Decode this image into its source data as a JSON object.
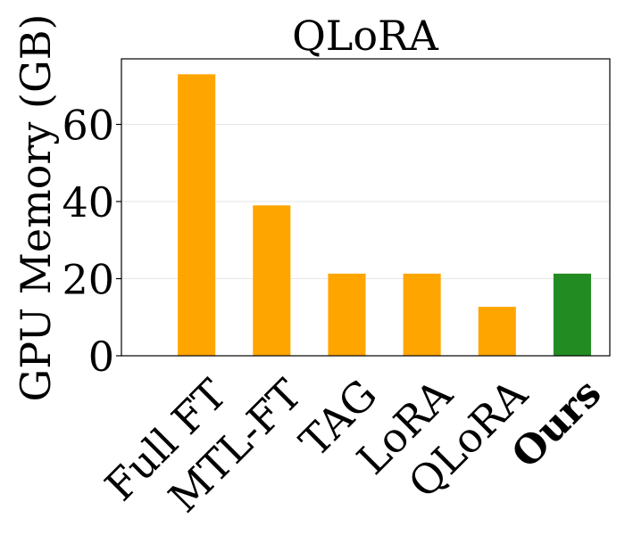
{
  "chart_data": {
    "type": "bar",
    "title": "QLoRA",
    "xlabel": "",
    "ylabel": "GPU Memory (GB)",
    "categories": [
      "Full FT",
      "MTL-FT",
      "TAG",
      "LoRA",
      "QLoRA",
      "Ours"
    ],
    "values": [
      73,
      39,
      21.3,
      21.3,
      12.7,
      21.3
    ],
    "bar_colors": [
      "#FFA500",
      "#FFA500",
      "#FFA500",
      "#FFA500",
      "#FFA500",
      "#228B22"
    ],
    "bold_category": "Ours",
    "ylim": [
      0,
      77
    ],
    "yticks": [
      0,
      20,
      40,
      60
    ],
    "grid": "horizontal"
  }
}
